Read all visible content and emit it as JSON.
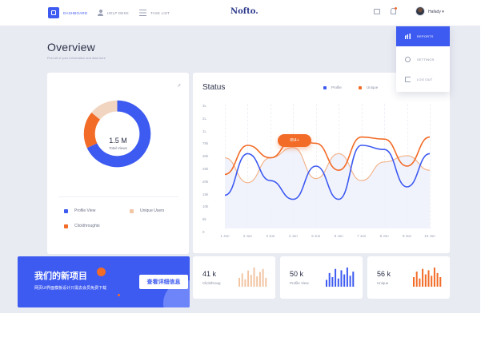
{
  "colors": {
    "primary": "#3d5af1",
    "accent": "#f26b27",
    "muted": "#f2c5a3",
    "line_light": "#f2b48c"
  },
  "nav": {
    "items": [
      {
        "label": "DASHBOARD",
        "icon": "dashboard-icon",
        "active": true
      },
      {
        "label": "HELP DESK",
        "icon": "user-icon",
        "active": false
      },
      {
        "label": "TASK LIST",
        "icon": "list-icon",
        "active": false
      }
    ],
    "logo_small": "",
    "logo": "Nofto.",
    "user": "Hafady",
    "user_caret": "▾"
  },
  "dropdown": {
    "items": [
      {
        "label": "REPORTS",
        "icon": "bar-chart-icon",
        "active": true
      },
      {
        "label": "SETTINGS",
        "icon": "gear-icon",
        "active": false
      },
      {
        "label": "LOG OUT",
        "icon": "logout-icon",
        "active": false
      }
    ]
  },
  "overview": {
    "title": "Overview",
    "subtitle": "Find all of your information and data here"
  },
  "views_card": {
    "expand_icon": "↗",
    "total": "1.5 M",
    "total_label": "Total Views",
    "donut": [
      {
        "name": "Profile View",
        "value": 68,
        "color": "#3d5af1"
      },
      {
        "name": "Clickthroughts",
        "value": 18,
        "color": "#f26b27"
      },
      {
        "name": "Unique Users",
        "value": 14,
        "color": "#f2d5c0"
      }
    ],
    "legend": [
      {
        "label": "Profile View",
        "color": "#3d5af1"
      },
      {
        "label": "Unique Users",
        "color": "#f2c5a3"
      },
      {
        "label": "Clickthroughts",
        "color": "#f26b27"
      }
    ]
  },
  "status": {
    "title": "Status",
    "legend": [
      {
        "label": "Profile",
        "color": "#3d5af1"
      },
      {
        "label": "Unique",
        "color": "#f26b27"
      }
    ],
    "pill": "854+"
  },
  "chart_data": {
    "type": "line",
    "title": "Status",
    "x": [
      "1 Jun",
      "2 Jun",
      "3 Jun",
      "4 Jun",
      "5 Jun",
      "6 Jun",
      "7 Jun",
      "8 Jun",
      "9 Jun",
      "10 Jun"
    ],
    "y_ticks": [
      "0",
      "5k",
      "10k",
      "15k",
      "20k",
      "25k",
      "30k",
      "75k",
      "1L",
      "2L",
      "3L"
    ],
    "ylim": [
      0,
      3000
    ],
    "grid": true,
    "series": [
      {
        "name": "Profile",
        "color": "#3d5af1",
        "values": [
          800,
          1800,
          1150,
          700,
          1500,
          700,
          2000,
          1900,
          1000,
          1800
        ]
      },
      {
        "name": "Unique",
        "color": "#f26b27",
        "values": [
          1300,
          2000,
          1700,
          2150,
          2050,
          1400,
          2200,
          2150,
          1500,
          2200
        ]
      },
      {
        "name": "",
        "color": "#f2b48c",
        "values": [
          1700,
          1100,
          1700,
          1950,
          1200,
          1800,
          1150,
          1600,
          1750,
          1400
        ]
      }
    ]
  },
  "promo": {
    "title": "我们的新项目",
    "text": "网页UI界面模板设计只需去会员免费下载",
    "button": "查看详细信息"
  },
  "stats": [
    {
      "value": "41 k",
      "label": "Clickthroug",
      "bars": [
        6,
        9,
        5,
        11,
        8,
        13,
        7,
        10,
        12,
        6
      ],
      "color": "#f2c5a3"
    },
    {
      "value": "50 k",
      "label": "Profile View",
      "bars": [
        5,
        10,
        7,
        13,
        6,
        12,
        9,
        14,
        8,
        11
      ],
      "color": "#3d5af1"
    },
    {
      "value": "56 k",
      "label": "Unique",
      "bars": [
        7,
        11,
        6,
        13,
        9,
        12,
        8,
        14,
        10,
        7
      ],
      "color": "#f26b27"
    }
  ]
}
